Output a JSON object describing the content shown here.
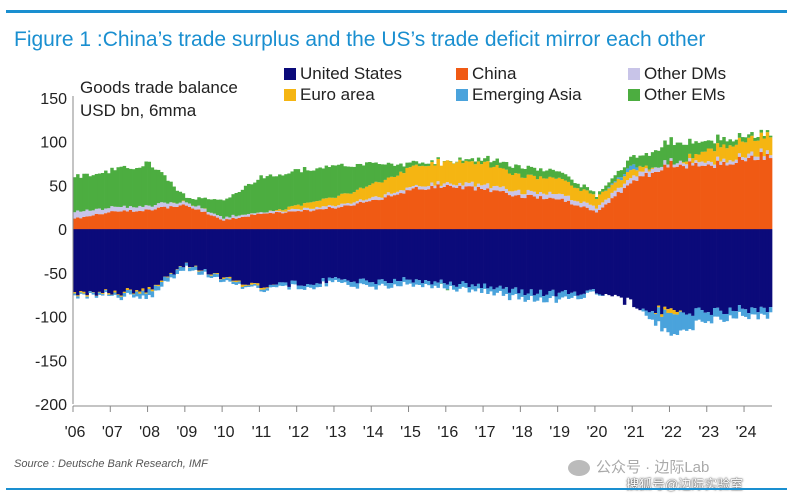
{
  "title": "Figure 1 :China’s trade surplus and the US’s trade deficit mirror each other",
  "source": "Source : Deutsche Bank Research, IMF",
  "watermark": "公众号 · 边际Lab",
  "watermark_bottom": "搜狐号@边际实验室",
  "chart_data": {
    "type": "bar",
    "stacked": true,
    "frequency": "monthly",
    "ylabel": [
      "Goods trade balance",
      "USD bn, 6mma"
    ],
    "ylim": [
      -200,
      150
    ],
    "yticks": [
      150,
      100,
      50,
      0,
      -50,
      -100,
      -150,
      -200
    ],
    "xticks": [
      "'06",
      "'07",
      "'08",
      "'09",
      "'10",
      "'11",
      "'12",
      "'13",
      "'14",
      "'15",
      "'16",
      "'17",
      "'18",
      "'19",
      "'20",
      "'21",
      "'22",
      "'23",
      "'24"
    ],
    "legend_position": "top",
    "colors": {
      "United States": "#0b0a7a",
      "China": "#f05a14",
      "Other DMs": "#c8c4e8",
      "Euro area": "#f5b512",
      "Emerging Asia": "#4aa3dc",
      "Other EMs": "#4cad40"
    },
    "legend_order": [
      "United States",
      "China",
      "Other DMs",
      "Euro area",
      "Emerging Asia",
      "Other EMs"
    ],
    "series_anchors": {
      "note_years": "values listed at the start of each year '06-'24 (Jan); months between are interpolated",
      "years": [
        "'06",
        "'07",
        "'08",
        "'09",
        "'10",
        "'11",
        "'12",
        "'13",
        "'14",
        "'15",
        "'16",
        "'17",
        "'18",
        "'19",
        "'20",
        "'21",
        "'22",
        "'23",
        "'24"
      ],
      "United States": [
        -72,
        -73,
        -68,
        -40,
        -56,
        -64,
        -62,
        -58,
        -60,
        -58,
        -62,
        -64,
        -72,
        -74,
        -70,
        -86,
        -96,
        -94,
        -92
      ],
      "China": [
        12,
        20,
        22,
        28,
        10,
        18,
        20,
        25,
        32,
        45,
        50,
        45,
        38,
        35,
        20,
        55,
        75,
        72,
        80
      ],
      "Other DMs": [
        8,
        5,
        5,
        4,
        3,
        2,
        2,
        3,
        3,
        3,
        3,
        5,
        5,
        6,
        5,
        6,
        4,
        4,
        4
      ],
      "Euro area": [
        -1,
        -1,
        -2,
        0,
        -1,
        -2,
        5,
        10,
        15,
        22,
        25,
        25,
        18,
        18,
        12,
        8,
        -6,
        15,
        18
      ],
      "Emerging Asia": [
        -2,
        -2,
        -6,
        -4,
        -3,
        -2,
        -4,
        -4,
        -6,
        -5,
        -5,
        -6,
        -8,
        -8,
        -2,
        5,
        -25,
        -10,
        -8
      ],
      "Other EMs": [
        40,
        42,
        48,
        5,
        20,
        40,
        40,
        35,
        25,
        5,
        0,
        5,
        10,
        8,
        3,
        10,
        25,
        10,
        5
      ]
    }
  }
}
